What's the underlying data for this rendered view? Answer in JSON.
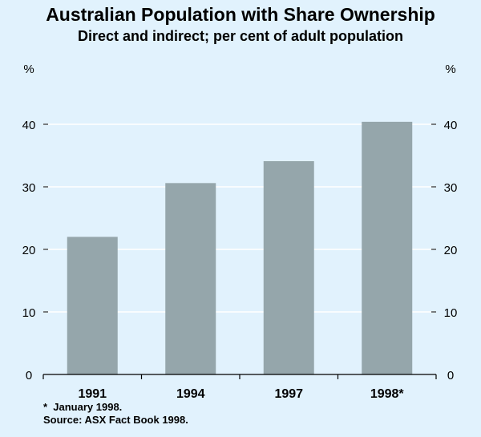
{
  "chart_data": {
    "type": "bar",
    "title": "Australian Population with Share Ownership",
    "subtitle": "Direct and indirect; per cent of adult population",
    "unit_left": "%",
    "unit_right": "%",
    "categories": [
      "1991",
      "1994",
      "1997",
      "1998*"
    ],
    "values": [
      22,
      30.6,
      34.1,
      40.4
    ],
    "ylim": [
      0,
      50
    ],
    "yticks": [
      0,
      10,
      20,
      30,
      40
    ],
    "grid": true,
    "bar_color": "#95a6ab",
    "grid_color": "#ffffff"
  },
  "notes": {
    "footnote": "*  January 1998.",
    "source": "Source: ASX Fact Book 1998."
  }
}
